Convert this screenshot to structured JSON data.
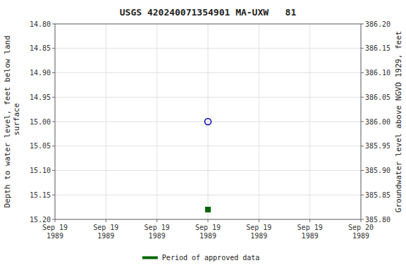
{
  "chart_data": {
    "type": "scatter",
    "title": "USGS 420240071354901 MA-UXW   81",
    "y_label": "Depth to water level, feet below land\n surface",
    "y2_label": "Groundwater level above NGVD 1929, feet",
    "categories": [
      "Sep 19\n1989",
      "Sep 19\n1989",
      "Sep 19\n1989",
      "Sep 19\n1989",
      "Sep 19\n1989",
      "Sep 19\n1989",
      "Sep 20\n1989"
    ],
    "series": [
      {
        "values": [
          null,
          null,
          null,
          15.0,
          null,
          null,
          null
        ],
        "color": "#0000bb",
        "marker": "open-circle"
      },
      {
        "name": "Period of approved data",
        "values": [
          null,
          null,
          null,
          15.18,
          null,
          null,
          null
        ],
        "color": "#006400",
        "marker": "square"
      }
    ],
    "ylim": [
      15.2,
      14.8
    ],
    "yticks": [
      {
        "value": 14.8,
        "label": "14.80"
      },
      {
        "value": 14.85,
        "label": "14.85"
      },
      {
        "value": 14.9,
        "label": "14.90"
      },
      {
        "value": 14.95,
        "label": "14.95"
      },
      {
        "value": 15.0,
        "label": "15.00"
      },
      {
        "value": 15.05,
        "label": "15.05"
      },
      {
        "value": 15.1,
        "label": "15.10"
      },
      {
        "value": 15.15,
        "label": "15.15"
      },
      {
        "value": 15.2,
        "label": "15.20"
      }
    ],
    "y2lim": [
      385.8,
      386.2
    ],
    "y2ticks": [
      {
        "value": 386.2,
        "label": "386.20"
      },
      {
        "value": 386.15,
        "label": "386.15"
      },
      {
        "value": 386.1,
        "label": "386.10"
      },
      {
        "value": 386.05,
        "label": "386.05"
      },
      {
        "value": 386.0,
        "label": "386.00"
      },
      {
        "value": 385.95,
        "label": "385.95"
      },
      {
        "value": 385.9,
        "label": "385.90"
      },
      {
        "value": 385.85,
        "label": "385.85"
      },
      {
        "value": 385.8,
        "label": "385.80"
      }
    ],
    "grid": true,
    "legend": "bottom"
  }
}
